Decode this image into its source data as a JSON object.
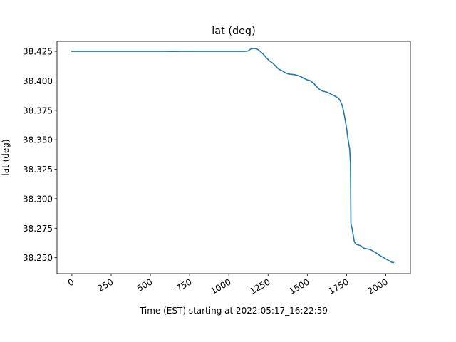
{
  "chart_data": {
    "type": "line",
    "title": "lat (deg)",
    "xlabel": "Time (EST) starting at 2022:05:17_16:22:59",
    "ylabel": "lat (deg)",
    "xlim": [
      -95,
      2157
    ],
    "ylim": [
      38.2365,
      38.4335
    ],
    "x_ticks": [
      0,
      250,
      500,
      750,
      1000,
      1250,
      1500,
      1750,
      2000
    ],
    "x_tick_labels": [
      "0",
      "250",
      "500",
      "750",
      "1000",
      "1250",
      "1500",
      "1750",
      "2000"
    ],
    "y_ticks": [
      38.25,
      38.275,
      38.3,
      38.325,
      38.35,
      38.375,
      38.4,
      38.425
    ],
    "y_tick_labels": [
      "38.250",
      "38.275",
      "38.300",
      "38.325",
      "38.350",
      "38.375",
      "38.400",
      "38.425"
    ],
    "grid": false,
    "series": [
      {
        "color": "#1f77b4",
        "x": [
          0,
          100,
          200,
          300,
          400,
          500,
          600,
          640,
          700,
          780,
          800,
          900,
          1000,
          1100,
          1120,
          1140,
          1160,
          1180,
          1200,
          1220,
          1240,
          1260,
          1280,
          1300,
          1320,
          1340,
          1360,
          1380,
          1400,
          1420,
          1440,
          1460,
          1480,
          1500,
          1520,
          1540,
          1560,
          1580,
          1600,
          1620,
          1640,
          1660,
          1680,
          1700,
          1710,
          1720,
          1730,
          1740,
          1750,
          1760,
          1770,
          1775,
          1778,
          1785,
          1800,
          1810,
          1820,
          1840,
          1860,
          1880,
          1900,
          1920,
          1940,
          1960,
          1980,
          2000,
          2020,
          2040,
          2050
        ],
        "y": [
          38.425,
          38.425,
          38.425,
          38.425,
          38.425,
          38.425,
          38.425,
          38.4249,
          38.425,
          38.4251,
          38.425,
          38.425,
          38.425,
          38.425,
          38.4252,
          38.427,
          38.4275,
          38.427,
          38.425,
          38.4225,
          38.4195,
          38.4168,
          38.415,
          38.4122,
          38.4098,
          38.4085,
          38.4068,
          38.4058,
          38.4055,
          38.4052,
          38.4045,
          38.4035,
          38.402,
          38.4008,
          38.4,
          38.398,
          38.395,
          38.3925,
          38.3912,
          38.3906,
          38.3895,
          38.388,
          38.3868,
          38.385,
          38.383,
          38.38,
          38.375,
          38.368,
          38.36,
          38.35,
          38.342,
          38.33,
          38.279,
          38.275,
          38.2635,
          38.2615,
          38.261,
          38.2602,
          38.258,
          38.2575,
          38.257,
          38.2555,
          38.254,
          38.252,
          38.2505,
          38.249,
          38.2475,
          38.246,
          38.246
        ]
      }
    ]
  }
}
